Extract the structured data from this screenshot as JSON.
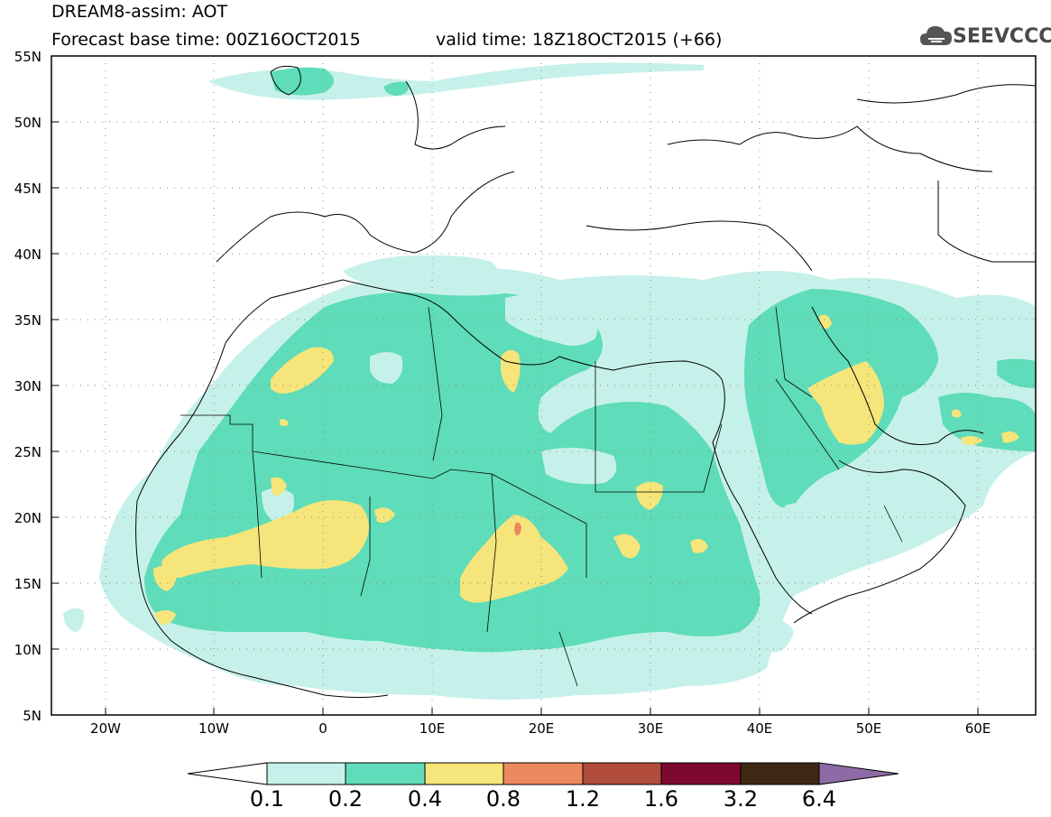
{
  "title": {
    "line1": "DREAM8-assim: AOT",
    "line2": "Forecast base time: 00Z16OCT2015",
    "line3": "valid time: 18Z18OCT2015 (+66)"
  },
  "logo": {
    "text": "SEEVCCC"
  },
  "map": {
    "lon_labels": [
      "20W",
      "10W",
      "0",
      "10E",
      "20E",
      "30E",
      "40E",
      "50E",
      "60E"
    ],
    "lat_labels": [
      "55N",
      "50N",
      "45N",
      "40N",
      "35N",
      "30N",
      "25N",
      "20N",
      "15N",
      "10N",
      "5N"
    ]
  },
  "colorbar": {
    "labels": [
      "0.1",
      "0.2",
      "0.4",
      "0.8",
      "1.2",
      "1.6",
      "3.2",
      "6.4"
    ],
    "colors": [
      "#ffffff",
      "#c6f1ea",
      "#5fdcb9",
      "#f5e57a",
      "#ec8a5f",
      "#b24c3c",
      "#7d0a2e",
      "#3f2713",
      "#8e6ba6"
    ]
  },
  "colors": {
    "level1": "#c6f1ea",
    "level2": "#5fdcb9",
    "level3": "#f5e57a",
    "level4": "#ec8a5f"
  }
}
